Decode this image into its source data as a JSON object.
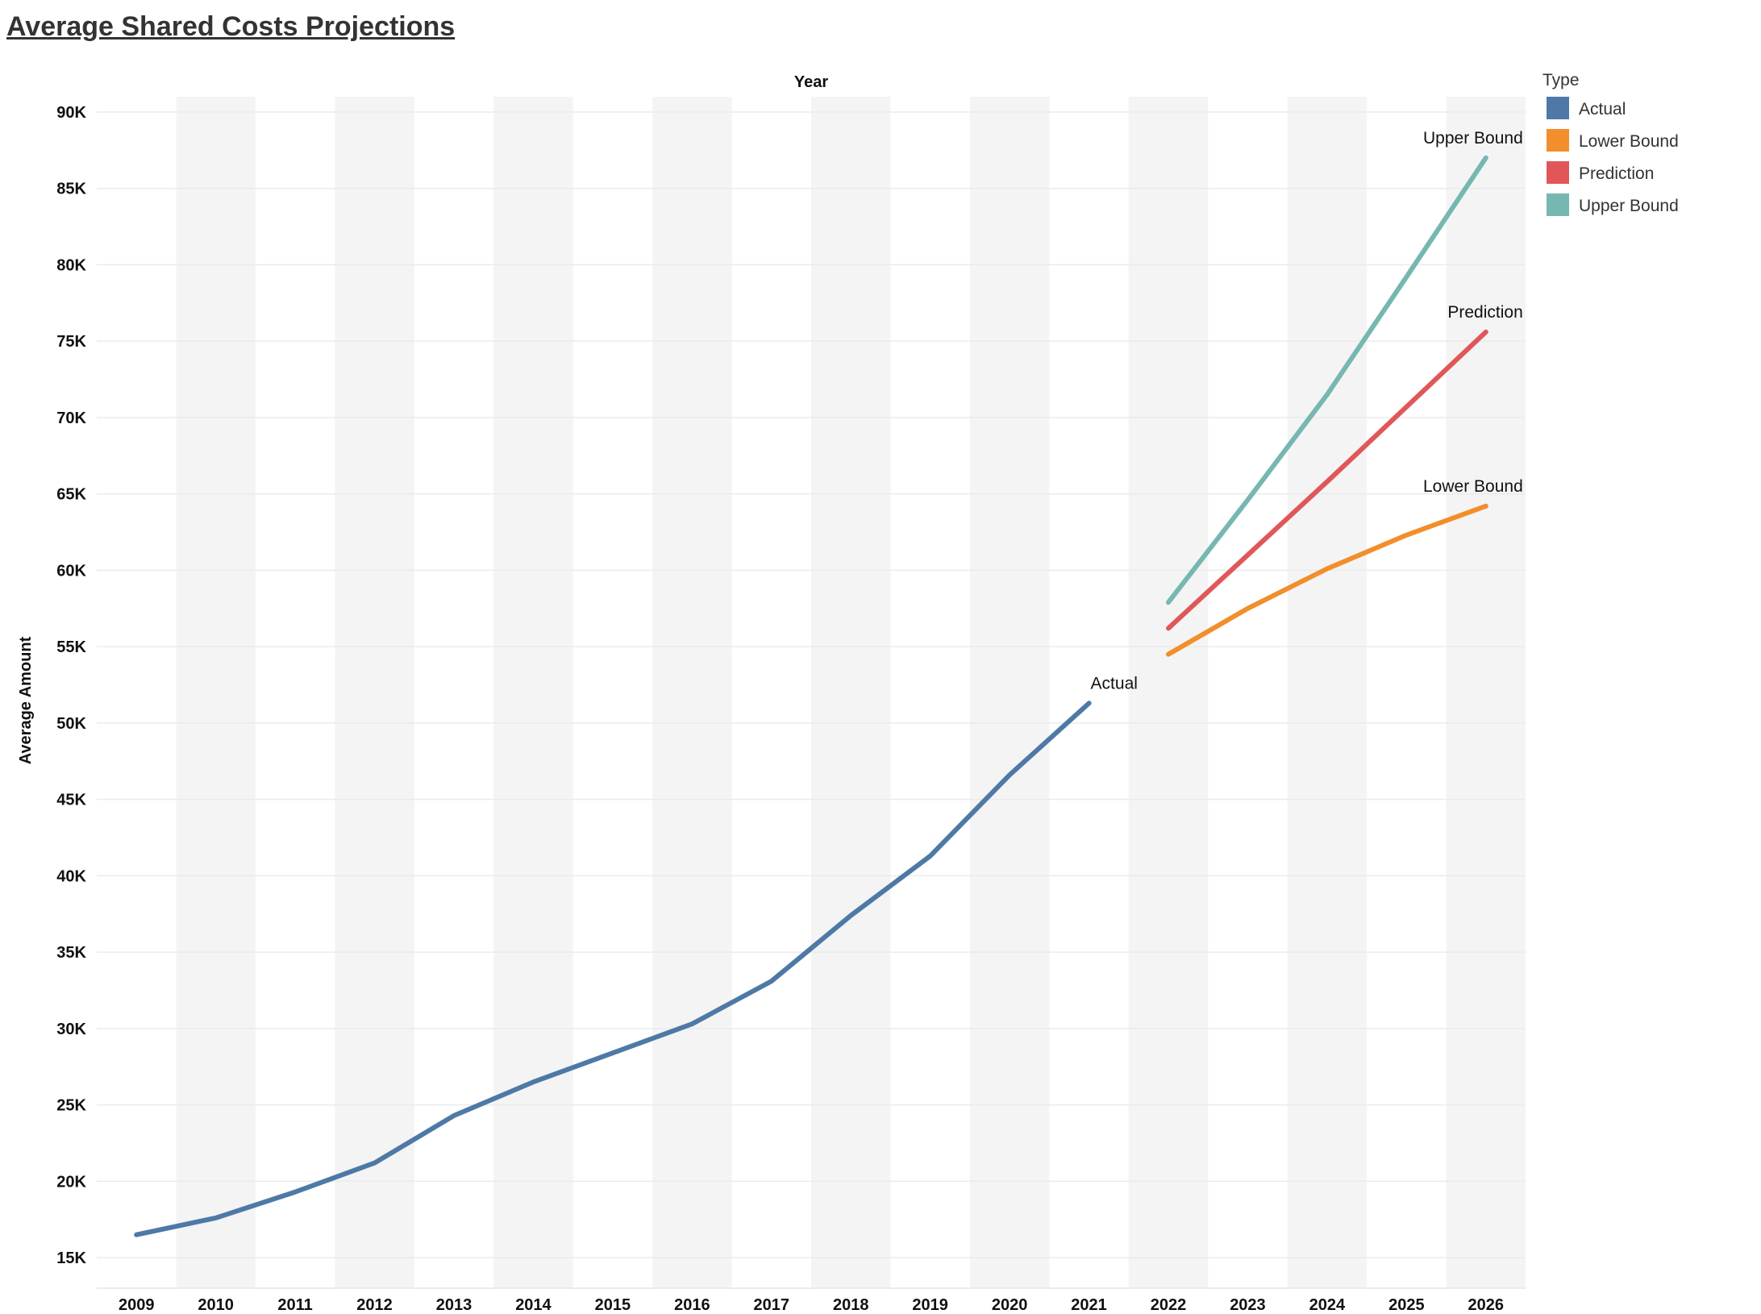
{
  "page": {
    "title": "Average Shared Costs Projections"
  },
  "chart_data": {
    "type": "line",
    "title": "Average Shared Costs Projections",
    "xlabel": "Year",
    "ylabel": "Average Amount",
    "x": [
      "2009",
      "2010",
      "2011",
      "2012",
      "2013",
      "2014",
      "2015",
      "2016",
      "2017",
      "2018",
      "2019",
      "2020",
      "2021",
      "2022",
      "2023",
      "2024",
      "2025",
      "2026"
    ],
    "ylim": [
      13000,
      91000
    ],
    "yticks": [
      15000,
      20000,
      25000,
      30000,
      35000,
      40000,
      45000,
      50000,
      55000,
      60000,
      65000,
      70000,
      75000,
      80000,
      85000,
      90000
    ],
    "ytick_labels": [
      "15K",
      "20K",
      "25K",
      "30K",
      "35K",
      "40K",
      "45K",
      "50K",
      "55K",
      "60K",
      "65K",
      "70K",
      "75K",
      "80K",
      "85K",
      "90K"
    ],
    "x_axis_position": "top-title, bottom-ticks",
    "alternating_column_bands": true,
    "legend": {
      "title": "Type",
      "placement": "top-right",
      "entries": [
        {
          "name": "Actual",
          "color": "#4e79a7"
        },
        {
          "name": "Lower Bound",
          "color": "#f28e2b"
        },
        {
          "name": "Prediction",
          "color": "#e15759"
        },
        {
          "name": "Upper Bound",
          "color": "#76b7b2"
        }
      ]
    },
    "series": [
      {
        "name": "Actual",
        "color": "#4e79a7",
        "label": "Actual",
        "x": [
          "2009",
          "2010",
          "2011",
          "2012",
          "2013",
          "2014",
          "2015",
          "2016",
          "2017",
          "2018",
          "2019",
          "2020",
          "2021"
        ],
        "values": [
          16500,
          17600,
          19300,
          21200,
          24300,
          26500,
          28400,
          30300,
          33100,
          37400,
          41300,
          46600,
          51300
        ]
      },
      {
        "name": "Lower Bound",
        "color": "#f28e2b",
        "label": "Lower Bound",
        "x": [
          "2022",
          "2023",
          "2024",
          "2025",
          "2026"
        ],
        "values": [
          54500,
          57500,
          60100,
          62300,
          64200
        ]
      },
      {
        "name": "Prediction",
        "color": "#e15759",
        "label": "Prediction",
        "x": [
          "2022",
          "2023",
          "2024",
          "2025",
          "2026"
        ],
        "values": [
          56200,
          61000,
          65800,
          70700,
          75600
        ]
      },
      {
        "name": "Upper Bound",
        "color": "#76b7b2",
        "label": "Upper Bound",
        "x": [
          "2022",
          "2023",
          "2024",
          "2025",
          "2026"
        ],
        "values": [
          57900,
          64600,
          71500,
          79200,
          87000
        ]
      }
    ]
  }
}
